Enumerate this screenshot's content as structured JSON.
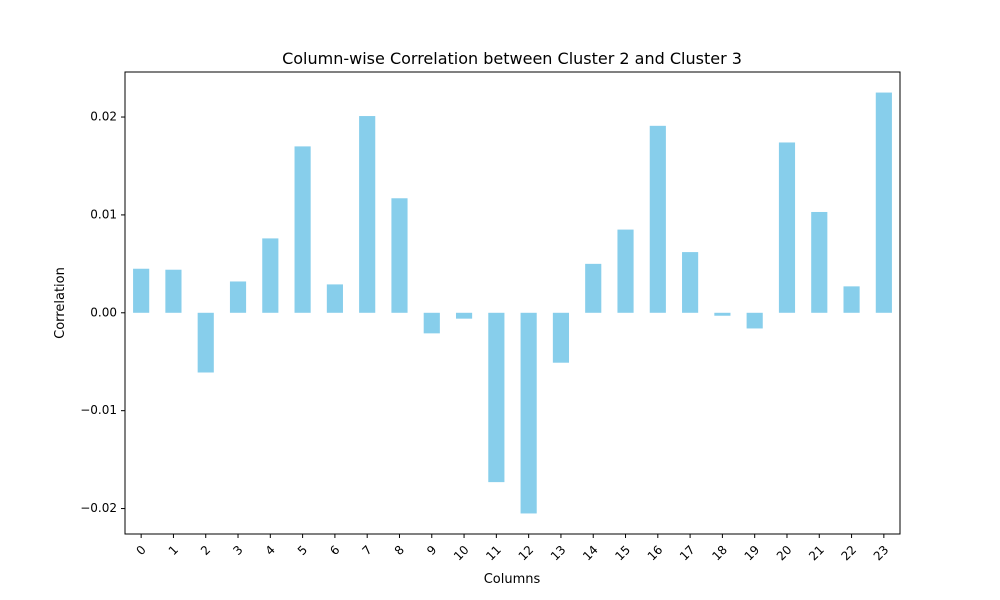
{
  "chart_data": {
    "type": "bar",
    "title": "Column-wise Correlation between Cluster 2 and Cluster 3",
    "xlabel": "Columns",
    "ylabel": "Correlation",
    "categories": [
      "0",
      "1",
      "2",
      "3",
      "4",
      "5",
      "6",
      "7",
      "8",
      "9",
      "10",
      "11",
      "12",
      "13",
      "14",
      "15",
      "16",
      "17",
      "18",
      "19",
      "20",
      "21",
      "22",
      "23"
    ],
    "values": [
      0.0045,
      0.0044,
      -0.0061,
      0.0032,
      0.0076,
      0.017,
      0.0029,
      0.0201,
      0.0117,
      -0.0021,
      -0.0006,
      -0.0173,
      -0.0205,
      -0.0051,
      0.005,
      0.0085,
      0.0191,
      0.0062,
      -0.0003,
      -0.0016,
      0.0174,
      0.0103,
      0.0027,
      0.0225
    ],
    "ylim": [
      -0.0226,
      0.0246
    ],
    "yticks": [
      -0.02,
      -0.01,
      0.0,
      0.01,
      0.02
    ],
    "ytick_labels": [
      "−0.02",
      "−0.01",
      "0.00",
      "0.01",
      "0.02"
    ],
    "bar_color": "#87ceeb",
    "grid": false,
    "legend": false
  }
}
